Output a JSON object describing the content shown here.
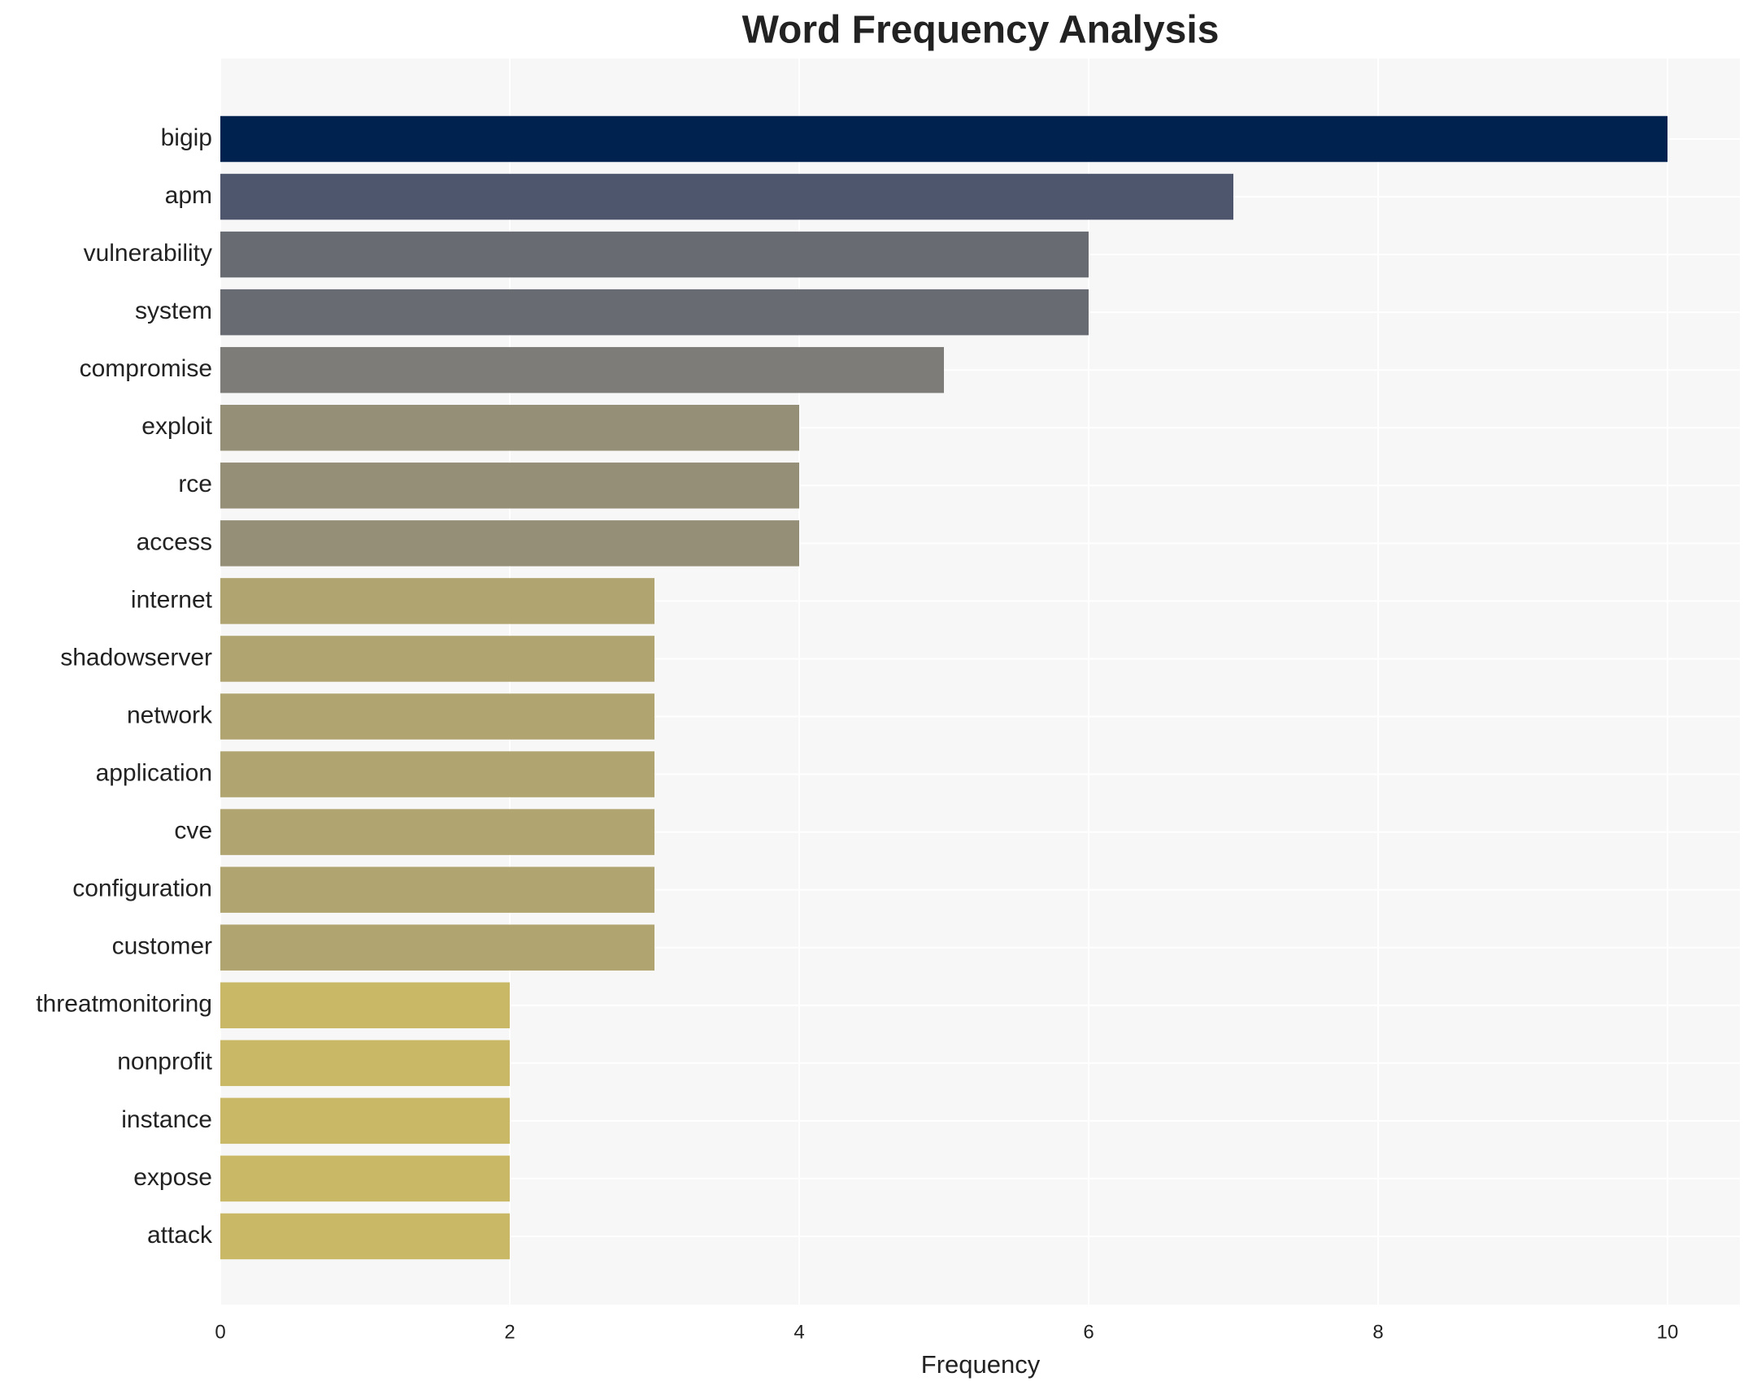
{
  "chart_data": {
    "type": "barh",
    "title": "Word Frequency Analysis",
    "xlabel": "Frequency",
    "categories": [
      "bigip",
      "apm",
      "vulnerability",
      "system",
      "compromise",
      "exploit",
      "rce",
      "access",
      "internet",
      "shadowserver",
      "network",
      "application",
      "cve",
      "configuration",
      "customer",
      "threatmonitoring",
      "nonprofit",
      "instance",
      "expose",
      "attack"
    ],
    "values": [
      10,
      7,
      6,
      6,
      5,
      4,
      4,
      4,
      3,
      3,
      3,
      3,
      3,
      3,
      3,
      2,
      2,
      2,
      2,
      2
    ],
    "colors": [
      "#00224e",
      "#4d566c",
      "#696b73",
      "#696b73",
      "#7d7c78",
      "#958f77",
      "#958f77",
      "#958f77",
      "#b0a470",
      "#b0a470",
      "#b0a470",
      "#b0a470",
      "#b0a470",
      "#b0a470",
      "#b0a470",
      "#c9b866",
      "#c9b866",
      "#c9b866",
      "#c9b866",
      "#c9b866"
    ],
    "xlim": [
      0,
      10.5
    ],
    "xticks": [
      0,
      2,
      4,
      6,
      8,
      10
    ],
    "grid": true
  }
}
